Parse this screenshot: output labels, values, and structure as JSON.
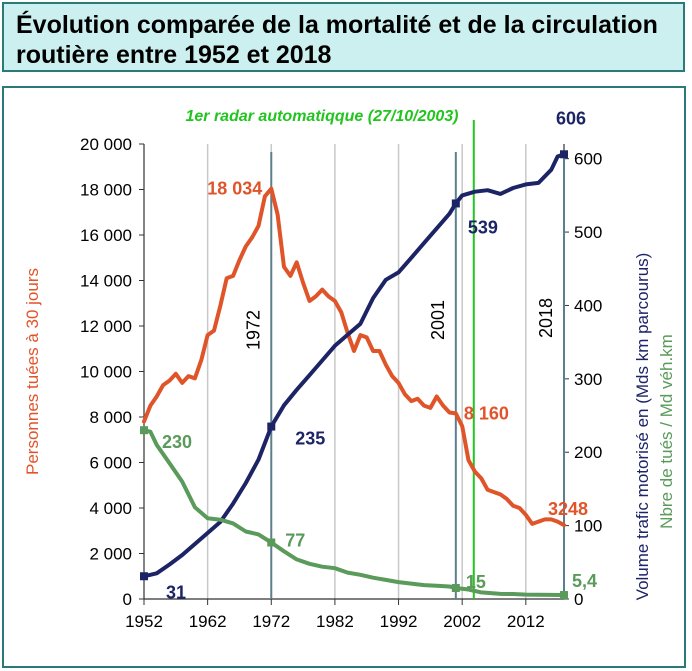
{
  "title": "Évolution comparée de la mortalité et de la circulation routière entre 1952 et 2018",
  "chart_data": {
    "type": "line",
    "title": "Évolution comparée de la mortalité et de la circulation routière entre 1952 et 2018",
    "xlabel": "",
    "ylabel_left": "Personnes tuées à 30 jours",
    "ylabel_right": "Volume trafic motorisé en (Mds km parcourus)",
    "ylabel_right2": "Nbre de tués / Md véh.km",
    "xlim": [
      1952,
      2018
    ],
    "ylim_left": [
      0,
      20000
    ],
    "ylim_right": [
      0,
      620
    ],
    "x_ticks": [
      "1952",
      "1962",
      "1972",
      "1982",
      "1992",
      "2002",
      "2012"
    ],
    "y_left_ticks": [
      "0",
      "2 000",
      "4 000",
      "6 000",
      "8 000",
      "10 000",
      "12 000",
      "14 000",
      "16 000",
      "18 000",
      "20 000"
    ],
    "y_right_ticks": [
      "0",
      "100",
      "200",
      "300",
      "400",
      "500",
      "600"
    ],
    "radar_annotation": "1er radar automatiqque (27/10/2003)",
    "vertical_markers": [
      {
        "year": 1972,
        "label": "1972"
      },
      {
        "year": 2001,
        "label": "2001"
      },
      {
        "year": 2018,
        "label": "2018"
      }
    ],
    "series": [
      {
        "name": "Personnes tuées à 30 jours",
        "axis": "left",
        "color": "#e0542a",
        "x": [
          1952,
          1953,
          1954,
          1955,
          1956,
          1957,
          1958,
          1959,
          1960,
          1961,
          1962,
          1963,
          1964,
          1965,
          1966,
          1967,
          1968,
          1969,
          1970,
          1971,
          1972,
          1973,
          1974,
          1975,
          1976,
          1977,
          1978,
          1979,
          1980,
          1981,
          1982,
          1983,
          1984,
          1985,
          1986,
          1987,
          1988,
          1989,
          1990,
          1991,
          1992,
          1993,
          1994,
          1995,
          1996,
          1997,
          1998,
          1999,
          2000,
          2001,
          2002,
          2003,
          2004,
          2005,
          2006,
          2007,
          2008,
          2009,
          2010,
          2011,
          2012,
          2013,
          2014,
          2015,
          2016,
          2017,
          2018
        ],
        "y": [
          7800,
          8500,
          8900,
          9400,
          9600,
          9900,
          9500,
          9800,
          9700,
          10500,
          11600,
          11800,
          12900,
          14100,
          14200,
          14900,
          15500,
          15900,
          16400,
          17700,
          18034,
          16900,
          14600,
          14200,
          14800,
          13900,
          13100,
          13300,
          13600,
          13300,
          13100,
          12600,
          11700,
          10900,
          11600,
          11500,
          10900,
          10900,
          10300,
          9800,
          9500,
          9000,
          8700,
          8800,
          8500,
          8400,
          8900,
          8500,
          8200,
          8160,
          7600,
          6100,
          5600,
          5300,
          4800,
          4700,
          4600,
          4400,
          4100,
          4000,
          3700,
          3300,
          3400,
          3500,
          3500,
          3400,
          3248
        ]
      },
      {
        "name": "Volume trafic motorisé (Mds km)",
        "axis": "right",
        "color": "#1c2466",
        "x": [
          1952,
          1954,
          1956,
          1958,
          1960,
          1962,
          1964,
          1966,
          1968,
          1970,
          1972,
          1974,
          1976,
          1978,
          1980,
          1982,
          1984,
          1986,
          1988,
          1990,
          1992,
          1994,
          1996,
          1998,
          2000,
          2001,
          2002,
          2004,
          2006,
          2008,
          2010,
          2012,
          2014,
          2016,
          2017,
          2018
        ],
        "y": [
          31,
          35,
          47,
          60,
          75,
          90,
          105,
          130,
          158,
          190,
          235,
          264,
          285,
          305,
          325,
          345,
          360,
          375,
          410,
          435,
          445,
          465,
          485,
          505,
          525,
          539,
          550,
          555,
          557,
          552,
          560,
          565,
          567,
          585,
          603,
          606
        ]
      },
      {
        "name": "Nbre de tués / Md véh.km",
        "axis": "right",
        "color": "#5a9a5a",
        "x": [
          1952,
          1953,
          1954,
          1956,
          1958,
          1960,
          1962,
          1964,
          1966,
          1968,
          1970,
          1972,
          1974,
          1976,
          1978,
          1980,
          1982,
          1984,
          1986,
          1988,
          1990,
          1992,
          1994,
          1996,
          1998,
          2000,
          2001,
          2003,
          2005,
          2008,
          2010,
          2012,
          2014,
          2016,
          2018
        ],
        "y": [
          230,
          228,
          210,
          185,
          160,
          125,
          110,
          108,
          103,
          92,
          88,
          77,
          65,
          54,
          48,
          44,
          42,
          36,
          33,
          29,
          26,
          23,
          21,
          19,
          18,
          17,
          15,
          13,
          9,
          7,
          6.8,
          6,
          5.8,
          5.6,
          5.4
        ]
      }
    ],
    "data_labels": [
      {
        "text": "18 034",
        "series": "Personnes tuées à 30 jours",
        "x": 1972,
        "y": 18034
      },
      {
        "text": "8 160",
        "series": "Personnes tuées à 30 jours",
        "x": 2001,
        "y": 8160
      },
      {
        "text": "3248",
        "series": "Personnes tuées à 30 jours",
        "x": 2018,
        "y": 3248
      },
      {
        "text": "606",
        "series": "Volume trafic motorisé (Mds km)",
        "x": 2018,
        "y": 606
      },
      {
        "text": "539",
        "series": "Volume trafic motorisé (Mds km)",
        "x": 2001,
        "y": 539
      },
      {
        "text": "235",
        "series": "Volume trafic motorisé (Mds km)",
        "x": 1972,
        "y": 235
      },
      {
        "text": "31",
        "series": "Volume trafic motorisé (Mds km)",
        "x": 1952,
        "y": 31
      },
      {
        "text": "230",
        "series": "Nbre de tués / Md véh.km",
        "x": 1952,
        "y": 230
      },
      {
        "text": "77",
        "series": "Nbre de tués / Md véh.km",
        "x": 1972,
        "y": 77
      },
      {
        "text": "15",
        "series": "Nbre de tués / Md véh.km",
        "x": 2001,
        "y": 15
      },
      {
        "text": "5,4",
        "series": "Nbre de tués / Md véh.km",
        "x": 2018,
        "y": 5.4
      }
    ],
    "grid": true,
    "legend": "none"
  }
}
